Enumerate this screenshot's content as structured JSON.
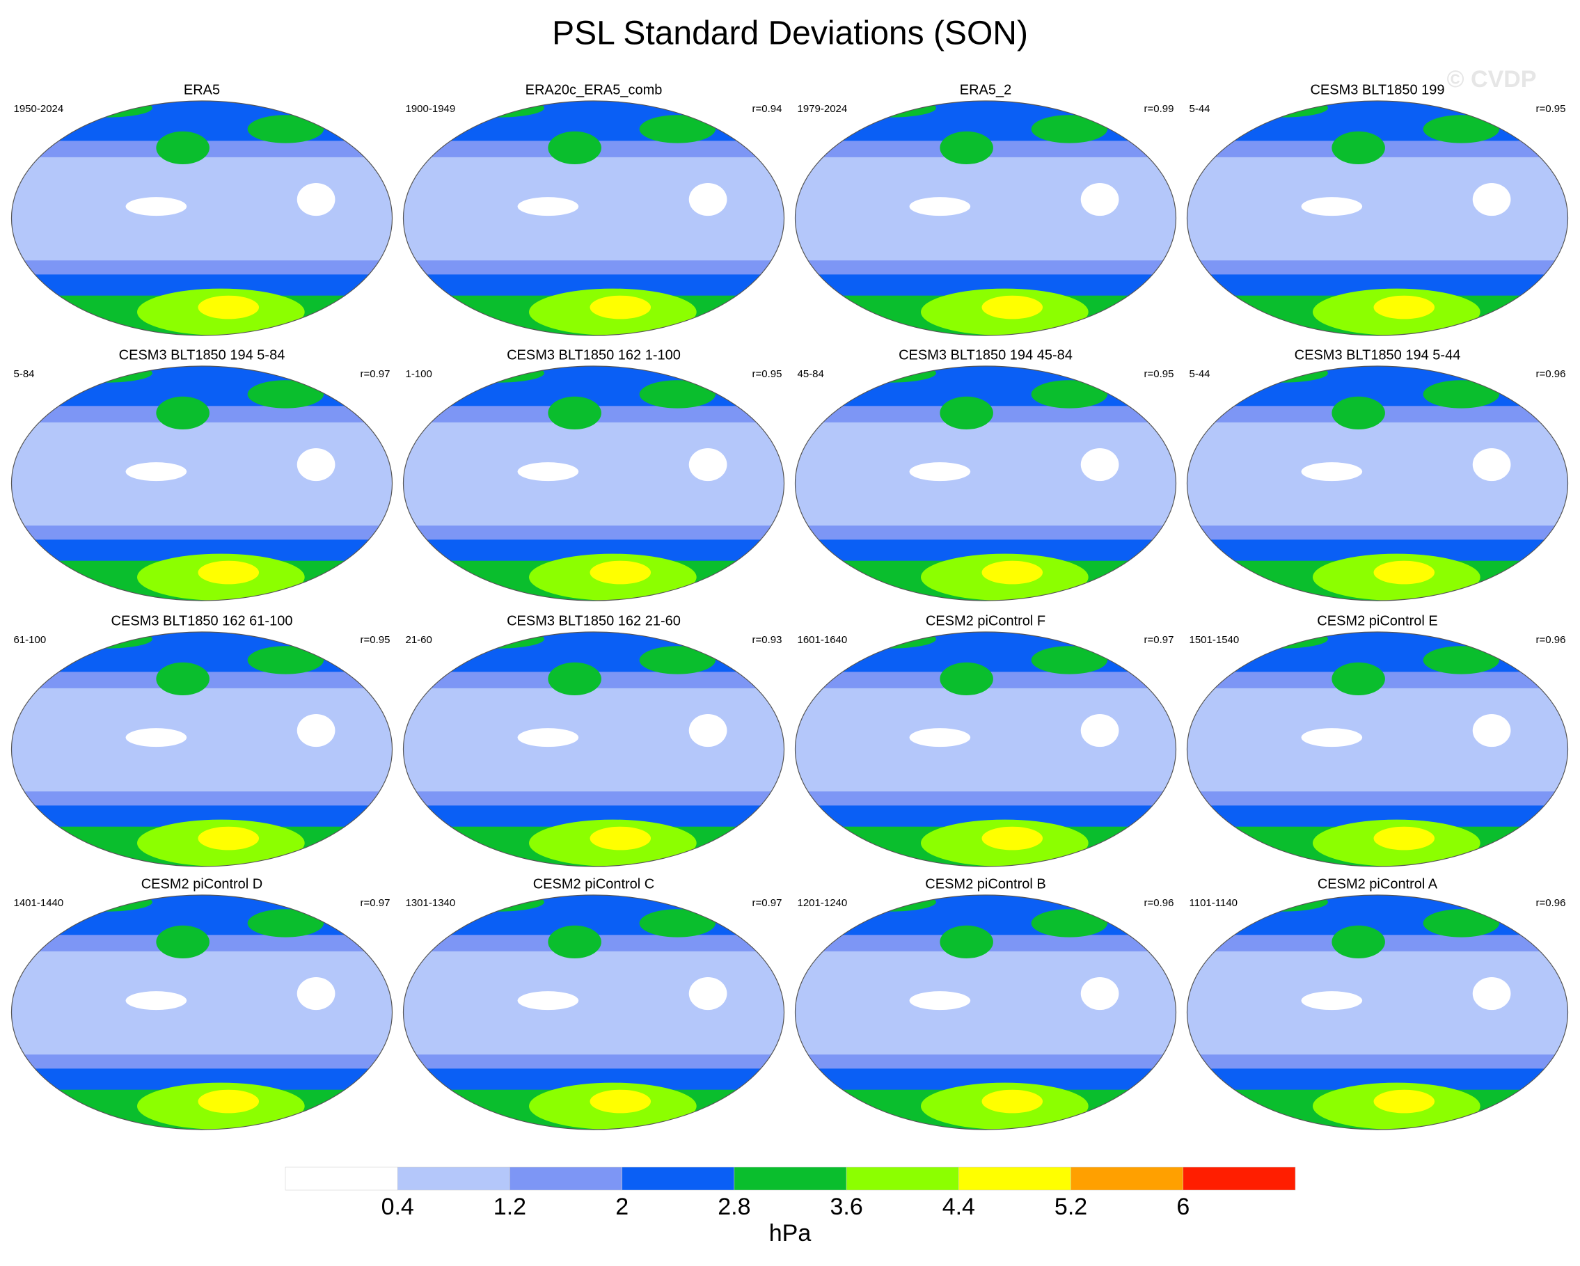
{
  "title": "PSL Standard Deviations (SON)",
  "watermark": "© CVDP",
  "panels": [
    {
      "title": "ERA5",
      "period": "1950-2024"
    },
    {
      "title": "ERA20c_ERA5_comb",
      "period": "1900-1949",
      "r": "r=0.94"
    },
    {
      "title": "ERA5_2",
      "period": "1979-2024",
      "r": "r=0.99"
    },
    {
      "title": "CESM3 BLT1850 199",
      "period": "5-44",
      "r": "r=0.95"
    },
    {
      "title": "CESM3 BLT1850 194 5-84",
      "period": "5-84",
      "r": "r=0.97"
    },
    {
      "title": "CESM3 BLT1850 162 1-100",
      "period": "1-100",
      "r": "r=0.95"
    },
    {
      "title": "CESM3 BLT1850 194 45-84",
      "period": "45-84",
      "r": "r=0.95"
    },
    {
      "title": "CESM3 BLT1850 194 5-44",
      "period": "5-44",
      "r": "r=0.96"
    },
    {
      "title": "CESM3 BLT1850 162 61-100",
      "period": "61-100",
      "r": "r=0.95"
    },
    {
      "title": "CESM3 BLT1850 162 21-60",
      "period": "21-60",
      "r": "r=0.93"
    },
    {
      "title": "CESM2 piControl F",
      "period": "1601-1640",
      "r": "r=0.97"
    },
    {
      "title": "CESM2 piControl E",
      "period": "1501-1540",
      "r": "r=0.96"
    },
    {
      "title": "CESM2 piControl D",
      "period": "1401-1440",
      "r": "r=0.97"
    },
    {
      "title": "CESM2 piControl C",
      "period": "1301-1340",
      "r": "r=0.97"
    },
    {
      "title": "CESM2 piControl B",
      "period": "1201-1240",
      "r": "r=0.96"
    },
    {
      "title": "CESM2 piControl A",
      "period": "1101-1140",
      "r": "r=0.96"
    }
  ],
  "colorbar": {
    "levels": [
      0.4,
      1.2,
      2,
      2.8,
      3.6,
      4.4,
      5.2,
      6
    ],
    "colors": [
      "#ffffff",
      "#b4c7fa",
      "#7d96f5",
      "#0a5ff5",
      "#0abe2d",
      "#8cff00",
      "#ffff00",
      "#ffa000",
      "#ff1e00"
    ],
    "unit": "hPa"
  }
}
